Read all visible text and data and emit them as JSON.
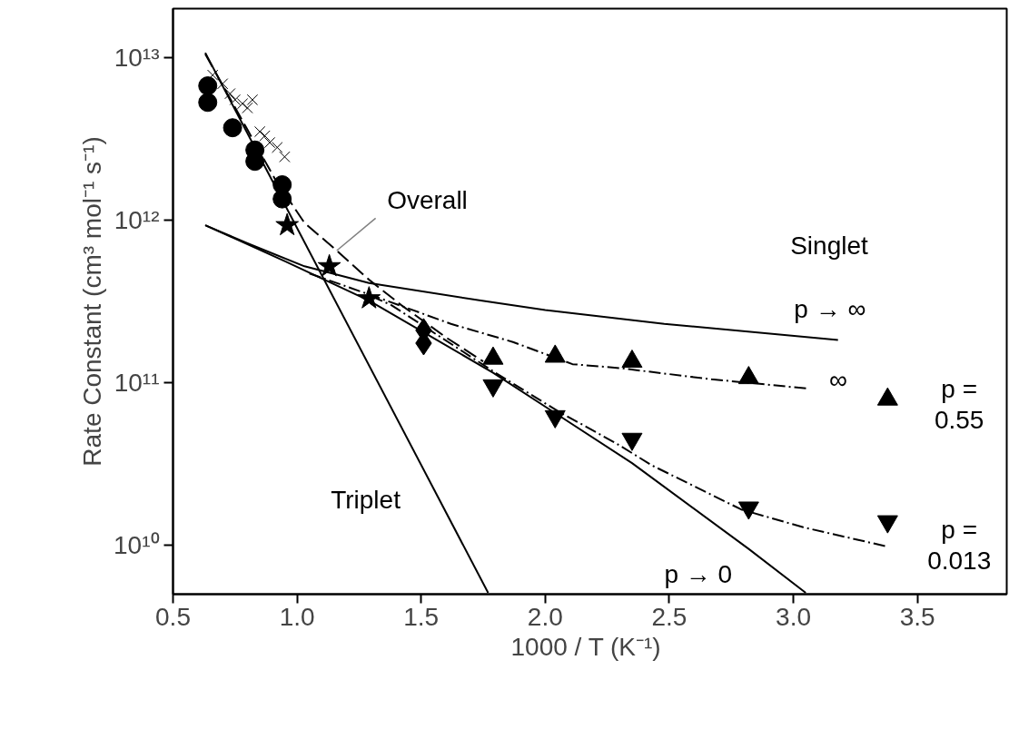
{
  "chart_data": {
    "type": "line",
    "xlabel": "1000 / T  (K⁻¹)",
    "ylabel": "Rate Constant (cm³ mol⁻¹ s⁻¹)",
    "xlim": [
      0.5,
      3.86
    ],
    "ylim": [
      5000000000.0,
      20000000000000.0
    ],
    "log": "y",
    "xticks": [
      {
        "value": 0.5,
        "label": "0.5"
      },
      {
        "value": 1.0,
        "label": "1.0"
      },
      {
        "value": 1.5,
        "label": "1.5"
      },
      {
        "value": 2.0,
        "label": "2.0"
      },
      {
        "value": 2.5,
        "label": "2.5"
      },
      {
        "value": 3.0,
        "label": "3.0"
      },
      {
        "value": 3.5,
        "label": "3.5"
      }
    ],
    "yticks": [
      {
        "value": 10000000000.0,
        "label": "10¹⁰"
      },
      {
        "value": 100000000000.0,
        "label": "10¹¹"
      },
      {
        "value": 1000000000000.0,
        "label": "10¹²"
      },
      {
        "value": 10000000000000.0,
        "label": "10¹³"
      }
    ],
    "grid": false,
    "series": [
      {
        "color": "#000000",
        "line_style": "solid",
        "x": [
          0.63,
          1.77
        ],
        "values": [
          10700000000000.0,
          5100000000.0
        ]
      },
      {
        "color": "#000000",
        "line_style": "solid",
        "x": [
          0.63,
          0.95,
          1.29,
          1.52,
          1.79,
          2.04,
          2.35,
          2.82,
          3.05
        ],
        "values": [
          930000000000.0,
          560000000000.0,
          320000000000.0,
          200000000000.0,
          115000000000.0,
          65000000000.0,
          32000000000.0,
          9500000000.0,
          5100000000.0
        ]
      },
      {
        "color": "#000000",
        "line_style": "solid",
        "x": [
          0.63,
          0.8,
          1.03,
          1.29,
          1.74,
          2.0,
          2.48,
          3.18
        ],
        "values": [
          930000000000.0,
          720000000000.0,
          520000000000.0,
          410000000000.0,
          320000000000.0,
          280000000000.0,
          230000000000.0,
          183000000000.0
        ]
      },
      {
        "color": "#000000",
        "line_style": "dashed",
        "x": [
          0.63,
          0.8,
          0.91,
          1.03,
          1.16,
          1.29,
          1.42,
          1.6,
          1.75
        ],
        "values": [
          10500000000000.0,
          3600000000000.0,
          1800000000000.0,
          960000000000.0,
          650000000000.0,
          430000000000.0,
          300000000000.0,
          190000000000.0,
          135000000000.0
        ]
      },
      {
        "color": "#000000",
        "line_style": "dashdot",
        "x": [
          1.05,
          1.36,
          1.62,
          1.87,
          2.11,
          2.3,
          2.67,
          3.06
        ],
        "values": [
          470000000000.0,
          320000000000.0,
          230000000000.0,
          178000000000.0,
          130000000000.0,
          123000000000.0,
          105000000000.0,
          92000000000.0
        ]
      },
      {
        "color": "#000000",
        "line_style": "dashdot",
        "x": [
          1.3,
          1.38,
          1.8,
          2.05,
          2.29,
          2.43,
          2.79,
          3.04,
          3.38
        ],
        "values": [
          340000000000.0,
          300000000000.0,
          115000000000.0,
          67000000000.0,
          42000000000.0,
          31000000000.0,
          16600000000.0,
          12900000000.0,
          9800000000.0
        ]
      },
      {
        "type": "scatter",
        "color": "#000000",
        "marker": "circle",
        "x": [
          0.64,
          0.64,
          0.74,
          0.83,
          0.83,
          0.94,
          0.94
        ],
        "values": [
          6700000000000.0,
          5300000000000.0,
          3700000000000.0,
          2700000000000.0,
          2300000000000.0,
          1650000000000.0,
          1350000000000.0
        ]
      },
      {
        "type": "scatter",
        "color": "#000000",
        "marker": "cross",
        "x": [
          0.66,
          0.7,
          0.73,
          0.75,
          0.78,
          0.8,
          0.82,
          0.85,
          0.87,
          0.89,
          0.92,
          0.95
        ],
        "values": [
          7800000000000.0,
          6900000000000.0,
          6000000000000.0,
          5500000000000.0,
          5200000000000.0,
          4900000000000.0,
          5500000000000.0,
          3500000000000.0,
          3300000000000.0,
          3000000000000.0,
          2800000000000.0,
          2450000000000.0
        ]
      },
      {
        "type": "scatter",
        "color": "#000000",
        "marker": "star",
        "x": [
          0.96,
          1.13,
          1.29
        ],
        "values": [
          930000000000.0,
          520000000000.0,
          330000000000.0
        ]
      },
      {
        "type": "scatter",
        "color": "#000000",
        "marker": "diamond",
        "x": [
          1.51,
          1.51
        ],
        "values": [
          210000000000.0,
          175000000000.0
        ]
      },
      {
        "type": "scatter",
        "color": "#000000",
        "marker": "triangle",
        "x": [
          1.79,
          2.04,
          2.35,
          2.82,
          3.38
        ],
        "values": [
          141000000000.0,
          145000000000.0,
          135000000000.0,
          107000000000.0,
          79000000000.0
        ]
      },
      {
        "type": "scatter",
        "color": "#000000",
        "marker": "triangle_down",
        "x": [
          1.79,
          2.04,
          2.35,
          2.82,
          3.38
        ],
        "values": [
          96000000000.0,
          62000000000.0,
          45000000000.0,
          17000000000.0,
          14000000000.0
        ]
      }
    ],
    "annotations": [
      {
        "text": "Overall",
        "x": 1.16,
        "y": 650000000000.0
      },
      "Singlet",
      "p → ∞",
      "∞",
      "p =\n0.55",
      "p =\n0.013",
      "Triplet",
      "p → 0"
    ]
  }
}
